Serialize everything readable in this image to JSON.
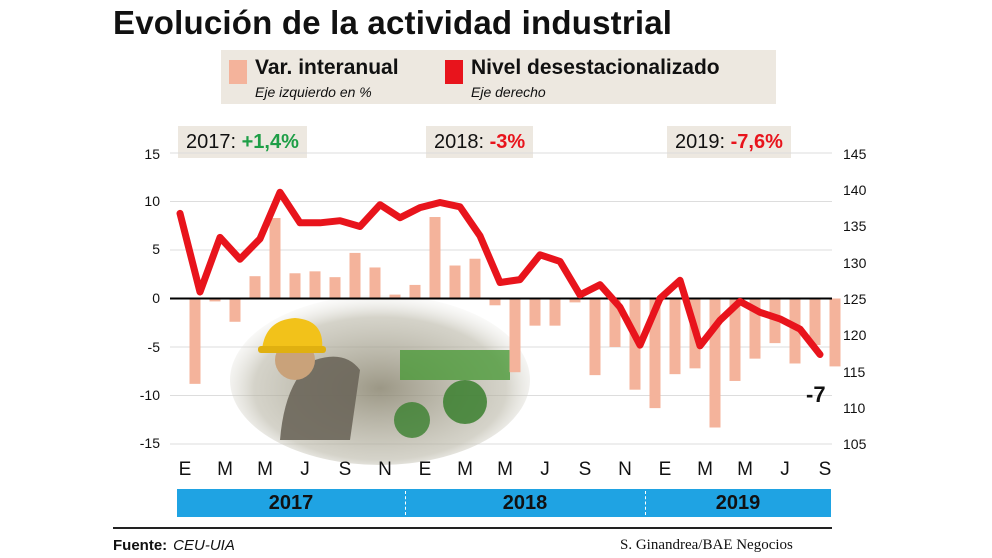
{
  "title": "Evolución de la actividad industrial",
  "legend": [
    {
      "label": "Var. interanual",
      "sub": "Eje izquierdo en %",
      "color": "#f4b39b"
    },
    {
      "label": "Nivel desestacionalizado",
      "sub": "Eje derecho",
      "color": "#e8141c"
    }
  ],
  "year_summaries": [
    {
      "year_label": "2017:",
      "value": "+1,4%",
      "color": "#1e9e46"
    },
    {
      "year_label": "2018:",
      "value": "-3%",
      "color": "#e8141c"
    },
    {
      "year_label": "2019:",
      "value": "-7,6%",
      "color": "#e8141c"
    }
  ],
  "left_ticks": [
    "15",
    "10",
    "5",
    "0",
    "-5",
    "-10",
    "-15"
  ],
  "right_ticks": [
    "145",
    "140",
    "135",
    "130",
    "125",
    "120",
    "115",
    "110",
    "105"
  ],
  "month_labels": [
    "E",
    "M",
    "M",
    "J",
    "S",
    "N",
    "E",
    "M",
    "M",
    "J",
    "S",
    "N",
    "E",
    "M",
    "M",
    "J",
    "S"
  ],
  "years": [
    "2017",
    "2018",
    "2019"
  ],
  "last_value_label": "-7",
  "source_label": "Fuente:",
  "source_value": "CEU-UIA",
  "credit": "S. Ginandrea/BAE Negocios",
  "chart_data": {
    "type": "bar+line",
    "x": [
      "E-17",
      "F-17",
      "M-17",
      "A-17",
      "M-17",
      "J-17",
      "J-17",
      "A-17",
      "S-17",
      "O-17",
      "N-17",
      "D-17",
      "E-18",
      "F-18",
      "M-18",
      "A-18",
      "M-18",
      "J-18",
      "J-18",
      "A-18",
      "S-18",
      "O-18",
      "N-18",
      "D-18",
      "E-19",
      "F-19",
      "M-19",
      "A-19",
      "M-19",
      "J-19",
      "J-19",
      "A-19",
      "S-19"
    ],
    "series": [
      {
        "name": "Var. interanual",
        "axis": "left",
        "type": "bar",
        "color": "#f4b39b",
        "values": [
          -8.8,
          -0.3,
          -2.4,
          2.3,
          8.3,
          2.6,
          2.8,
          2.2,
          4.7,
          3.2,
          0.4,
          1.4,
          8.4,
          3.4,
          4.1,
          -0.7,
          -7.6,
          -2.8,
          -2.8,
          -0.4,
          -7.9,
          -5.0,
          -9.4,
          -11.3,
          -7.8,
          -7.2,
          -13.3,
          -8.5,
          -6.2,
          -4.6,
          -6.7,
          -4.8,
          -7.0
        ]
      },
      {
        "name": "Nivel desestacionalizado",
        "axis": "right",
        "type": "line",
        "color": "#e8141c",
        "values": [
          136.7,
          125.9,
          133.4,
          130.4,
          133.2,
          139.6,
          135.4,
          135.4,
          135.7,
          134.9,
          137.9,
          136.1,
          137.5,
          138.2,
          137.6,
          133.6,
          127.2,
          127.6,
          131.0,
          130.1,
          125.5,
          126.9,
          123.8,
          118.6,
          125.0,
          127.5,
          118.5,
          122.0,
          124.6,
          123.1,
          122.2,
          120.8,
          117.3
        ]
      }
    ],
    "ylim_left": [
      -15,
      15
    ],
    "ylim_right": [
      105,
      145
    ]
  }
}
